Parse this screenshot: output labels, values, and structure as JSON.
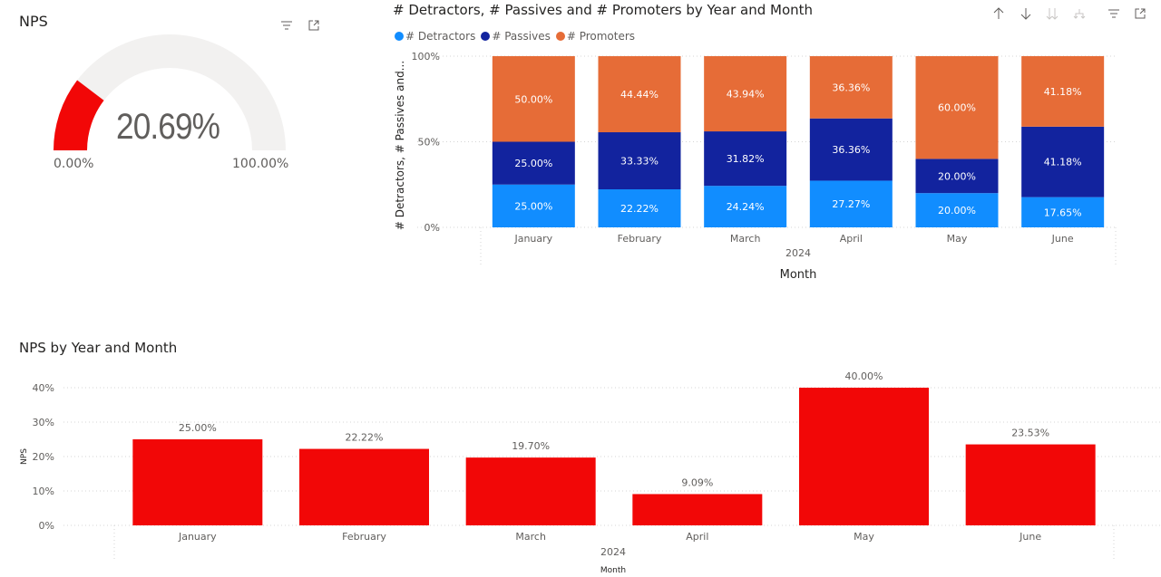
{
  "gauge": {
    "title": "NPS",
    "value": 0.2069,
    "value_label": "20.69%",
    "min_label": "0.00%",
    "max_label": "100.00%",
    "fill_color": "#F20707",
    "track_color": "#F2F1F0"
  },
  "stacked": {
    "title": "# Detractors, # Passives and # Promoters by Year and Month",
    "toolbar_icons": [
      "arrow-up-icon",
      "arrow-down-icon",
      "double-arrow-down-icon",
      "fork-icon",
      "filter-icon",
      "focus-mode-icon"
    ]
  },
  "npsbar": {
    "title": "NPS by Year and Month"
  },
  "chart_data": [
    {
      "type": "bar",
      "stacked": "100%",
      "title": "# Detractors, # Passives and # Promoters by Year and Month",
      "categories": [
        "January",
        "February",
        "March",
        "April",
        "May",
        "June"
      ],
      "group_label": "2024",
      "xlabel": "Month",
      "ylabel": "# Detractors, # Passives and...",
      "yticks": [
        "0%",
        "50%",
        "100%"
      ],
      "ylim": [
        0,
        100
      ],
      "legend": "top-left",
      "series": [
        {
          "name": "# Detractors",
          "color": "#118DFF",
          "values": [
            25.0,
            22.22,
            24.24,
            27.27,
            20.0,
            17.65
          ],
          "labels": [
            "25.00%",
            "22.22%",
            "24.24%",
            "27.27%",
            "20.00%",
            "17.65%"
          ]
        },
        {
          "name": "# Passives",
          "color": "#12239E",
          "values": [
            25.0,
            33.33,
            31.82,
            36.36,
            20.0,
            41.18
          ],
          "labels": [
            "25.00%",
            "33.33%",
            "31.82%",
            "36.36%",
            "20.00%",
            "41.18%"
          ]
        },
        {
          "name": "# Promoters",
          "color": "#E66C37",
          "values": [
            50.0,
            44.44,
            43.94,
            36.36,
            60.0,
            41.18
          ],
          "labels": [
            "50.00%",
            "44.44%",
            "43.94%",
            "36.36%",
            "60.00%",
            "41.18%"
          ]
        }
      ]
    },
    {
      "type": "bar",
      "title": "NPS by Year and Month",
      "categories": [
        "January",
        "February",
        "March",
        "April",
        "May",
        "June"
      ],
      "group_label": "2024",
      "xlabel": "Month",
      "ylabel": "NPS",
      "yticks": [
        "0%",
        "10%",
        "20%",
        "30%",
        "40%"
      ],
      "ylim": [
        0,
        40
      ],
      "color": "#F20707",
      "values": [
        25.0,
        22.22,
        19.7,
        9.09,
        40.0,
        23.53
      ],
      "labels": [
        "25.00%",
        "22.22%",
        "19.70%",
        "9.09%",
        "40.00%",
        "23.53%"
      ]
    }
  ]
}
